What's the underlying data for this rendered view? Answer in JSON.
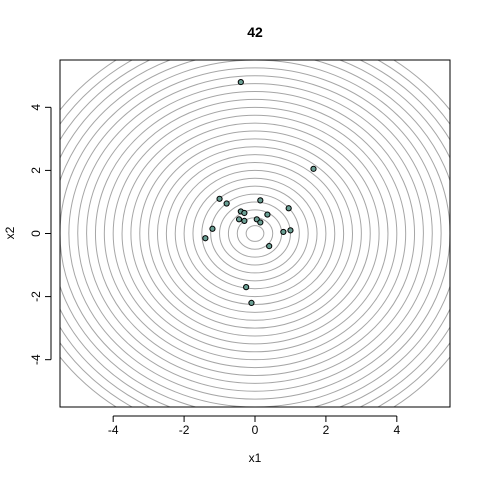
{
  "chart_data": {
    "type": "scatter",
    "title": "42",
    "xlabel": "x1",
    "ylabel": "x2",
    "xlim": [
      -5.5,
      5.5
    ],
    "ylim": [
      -5.5,
      5.5
    ],
    "x_ticks": [
      -4,
      -2,
      0,
      2,
      4
    ],
    "y_ticks": [
      -4,
      -2,
      0,
      2,
      4
    ],
    "x_tick_labels": [
      "-4",
      "-2",
      "0",
      "2",
      "4"
    ],
    "y_tick_labels": [
      "-4",
      "-2",
      "0",
      "2",
      "4"
    ],
    "grid": false,
    "background_contours": {
      "center": [
        0,
        0
      ],
      "radii": [
        0.25,
        0.5,
        0.75,
        1.0,
        1.25,
        1.5,
        1.75,
        2.0,
        2.25,
        2.5,
        2.75,
        3.0,
        3.25,
        3.5,
        3.75,
        4.0,
        4.25,
        4.5,
        4.75,
        5.0,
        5.25,
        5.5,
        5.75,
        6.0,
        6.25,
        6.5,
        6.75
      ],
      "color": "#a6a6a6"
    },
    "points": {
      "color": "#6a9f94",
      "x": [
        -0.4,
        1.65,
        -1.0,
        -0.8,
        0.15,
        -0.4,
        -0.3,
        0.35,
        -0.45,
        -0.3,
        0.05,
        0.15,
        0.95,
        -1.2,
        0.8,
        1.0,
        -1.4,
        0.4,
        -0.25,
        -0.1
      ],
      "y": [
        4.8,
        2.05,
        1.1,
        0.95,
        1.05,
        0.7,
        0.65,
        0.6,
        0.45,
        0.4,
        0.45,
        0.35,
        0.8,
        0.15,
        0.05,
        0.1,
        -0.15,
        -0.4,
        -1.7,
        -2.2
      ]
    }
  }
}
